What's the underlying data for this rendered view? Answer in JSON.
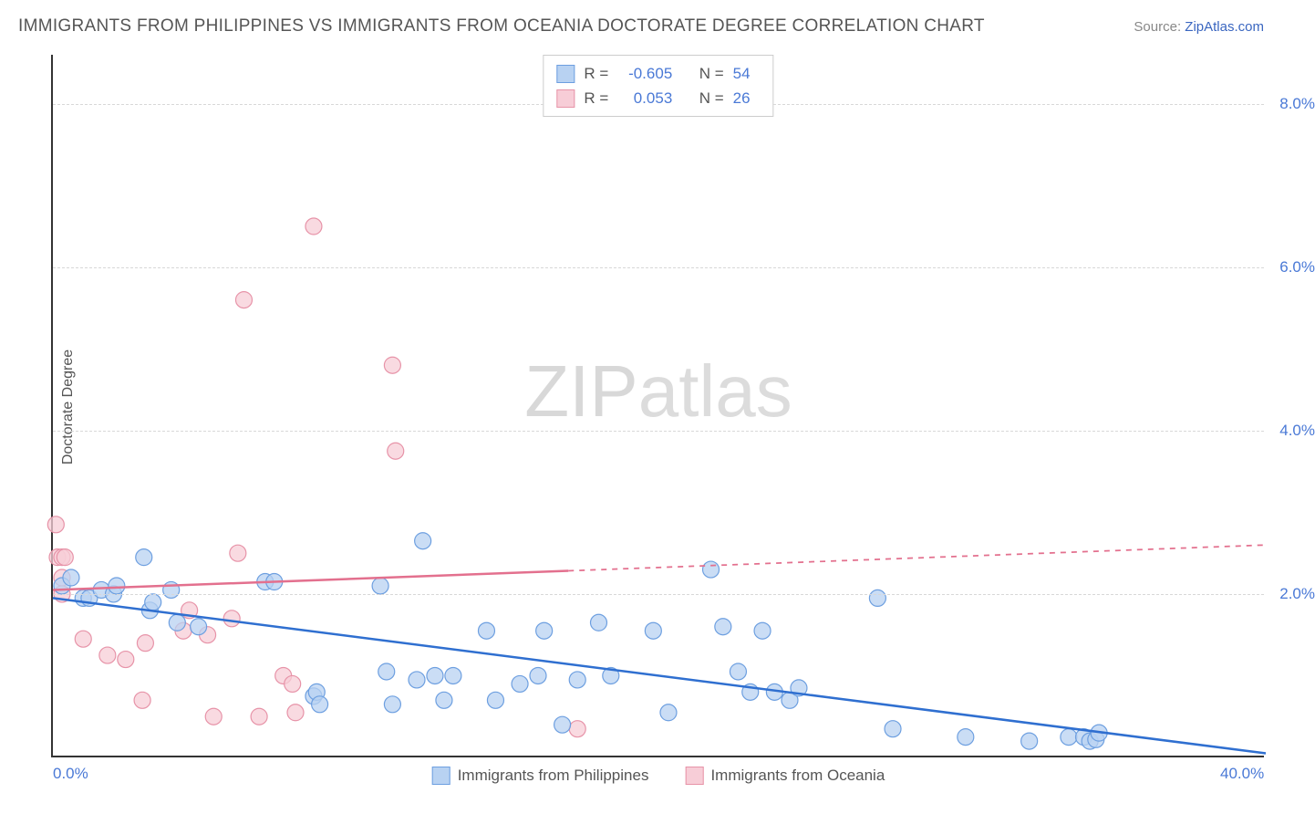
{
  "title": "IMMIGRANTS FROM PHILIPPINES VS IMMIGRANTS FROM OCEANIA DOCTORATE DEGREE CORRELATION CHART",
  "source_label": "Source:",
  "source_name": "ZipAtlas.com",
  "watermark_a": "ZIP",
  "watermark_b": "atlas",
  "y_axis_label": "Doctorate Degree",
  "chart": {
    "type": "scatter_with_regression",
    "background_color": "#ffffff",
    "grid_color": "#d8d8d8",
    "axis_color": "#333333",
    "xlim": [
      0,
      40
    ],
    "ylim": [
      0,
      8.6
    ],
    "x_ticks": [
      {
        "v": 0,
        "label": "0.0%"
      },
      {
        "v": 40,
        "label": "40.0%"
      }
    ],
    "y_ticks": [
      {
        "v": 2,
        "label": "2.0%"
      },
      {
        "v": 4,
        "label": "4.0%"
      },
      {
        "v": 6,
        "label": "6.0%"
      },
      {
        "v": 8,
        "label": "8.0%"
      }
    ],
    "marker_radius": 9,
    "marker_stroke_width": 1.2,
    "line_width": 2.5,
    "series": [
      {
        "name": "Immigrants from Philippines",
        "fill": "#b8d2f2",
        "stroke": "#6d9fe0",
        "line_color": "#2f6fd0",
        "R_label": "R =",
        "R": "-0.605",
        "N_label": "N =",
        "N": "54",
        "regression": {
          "x1": 0,
          "y1": 1.95,
          "x2": 40,
          "y2": 0.05,
          "dash_from_x": 40
        },
        "points": [
          [
            0.3,
            2.1
          ],
          [
            0.6,
            2.2
          ],
          [
            1.0,
            1.95
          ],
          [
            1.2,
            1.95
          ],
          [
            1.6,
            2.05
          ],
          [
            2.0,
            2.0
          ],
          [
            2.1,
            2.1
          ],
          [
            3.0,
            2.45
          ],
          [
            3.2,
            1.8
          ],
          [
            3.3,
            1.9
          ],
          [
            3.9,
            2.05
          ],
          [
            4.1,
            1.65
          ],
          [
            4.8,
            1.6
          ],
          [
            7.0,
            2.15
          ],
          [
            7.3,
            2.15
          ],
          [
            8.6,
            0.75
          ],
          [
            8.7,
            0.8
          ],
          [
            8.8,
            0.65
          ],
          [
            10.8,
            2.1
          ],
          [
            11.0,
            1.05
          ],
          [
            11.2,
            0.65
          ],
          [
            12.0,
            0.95
          ],
          [
            12.2,
            2.65
          ],
          [
            12.6,
            1.0
          ],
          [
            12.9,
            0.7
          ],
          [
            13.2,
            1.0
          ],
          [
            14.3,
            1.55
          ],
          [
            14.6,
            0.7
          ],
          [
            15.4,
            0.9
          ],
          [
            16.0,
            1.0
          ],
          [
            16.2,
            1.55
          ],
          [
            16.8,
            0.4
          ],
          [
            17.3,
            0.95
          ],
          [
            18.0,
            1.65
          ],
          [
            18.4,
            1.0
          ],
          [
            19.8,
            1.55
          ],
          [
            20.3,
            0.55
          ],
          [
            21.7,
            2.3
          ],
          [
            22.1,
            1.6
          ],
          [
            22.6,
            1.05
          ],
          [
            23.0,
            0.8
          ],
          [
            23.4,
            1.55
          ],
          [
            23.8,
            0.8
          ],
          [
            24.3,
            0.7
          ],
          [
            24.6,
            0.85
          ],
          [
            27.2,
            1.95
          ],
          [
            27.7,
            0.35
          ],
          [
            30.1,
            0.25
          ],
          [
            32.2,
            0.2
          ],
          [
            33.5,
            0.25
          ],
          [
            34.0,
            0.25
          ],
          [
            34.2,
            0.2
          ],
          [
            34.4,
            0.22
          ],
          [
            34.5,
            0.3
          ]
        ]
      },
      {
        "name": "Immigrants from Oceania",
        "fill": "#f7cdd7",
        "stroke": "#e793a8",
        "line_color": "#e3708e",
        "R_label": "R =",
        "R": "0.053",
        "N_label": "N =",
        "N": "26",
        "regression": {
          "x1": 0,
          "y1": 2.05,
          "x2": 40,
          "y2": 2.6,
          "dash_from_x": 17
        },
        "points": [
          [
            0.1,
            2.85
          ],
          [
            0.15,
            2.45
          ],
          [
            0.3,
            2.0
          ],
          [
            0.3,
            2.45
          ],
          [
            0.3,
            2.2
          ],
          [
            0.4,
            2.45
          ],
          [
            1.0,
            1.45
          ],
          [
            1.8,
            1.25
          ],
          [
            2.4,
            1.2
          ],
          [
            2.95,
            0.7
          ],
          [
            3.05,
            1.4
          ],
          [
            4.3,
            1.55
          ],
          [
            4.5,
            1.8
          ],
          [
            5.1,
            1.5
          ],
          [
            5.3,
            0.5
          ],
          [
            5.9,
            1.7
          ],
          [
            6.1,
            2.5
          ],
          [
            6.3,
            5.6
          ],
          [
            6.8,
            0.5
          ],
          [
            7.6,
            1.0
          ],
          [
            7.9,
            0.9
          ],
          [
            8.0,
            0.55
          ],
          [
            8.6,
            6.5
          ],
          [
            11.2,
            4.8
          ],
          [
            11.3,
            3.75
          ],
          [
            17.3,
            0.35
          ]
        ]
      }
    ]
  }
}
